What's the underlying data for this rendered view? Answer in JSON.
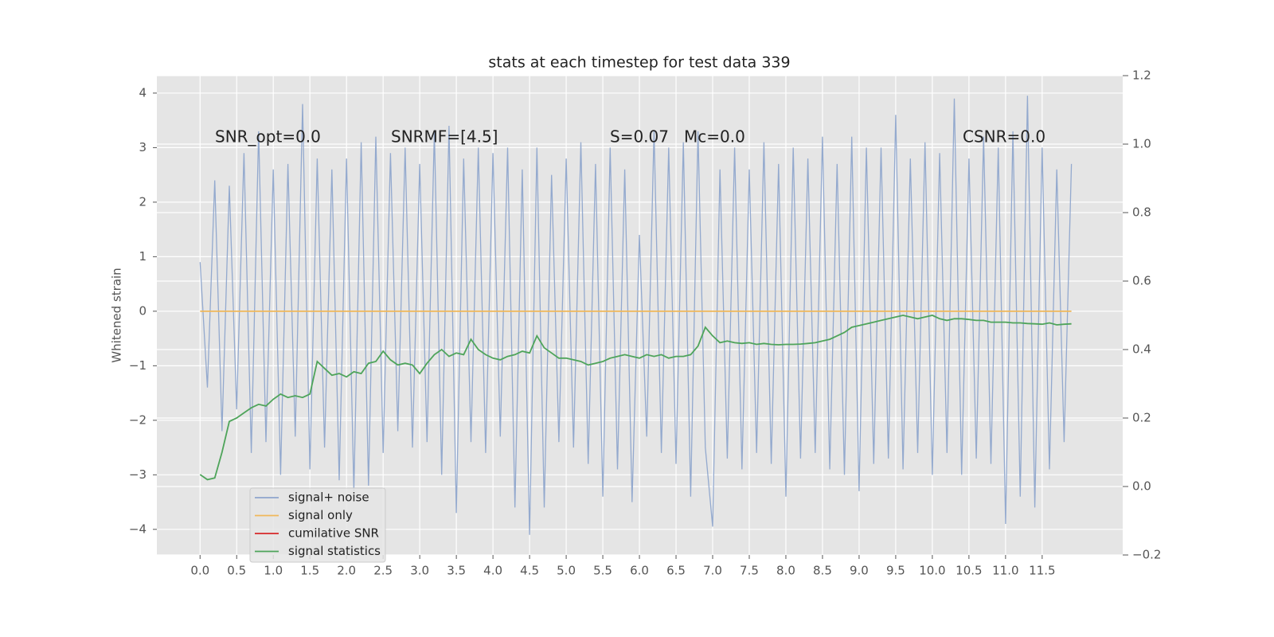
{
  "chart_data": {
    "type": "line",
    "title": "stats at each timestep for test data 339",
    "y_label": "Whitened strain",
    "annotations": [
      "SNR_opt=0.0",
      "SNRMF=[4.5]",
      "S=0.07",
      "Mc=0.0",
      "CSNR=0.0"
    ],
    "grid": true,
    "legend": "lower left",
    "xlim": [
      -0.59,
      12.6
    ],
    "ylim": [
      -4.47,
      4.32
    ],
    "y2lim": [
      -0.2,
      1.2
    ],
    "xticks": [
      {
        "value": 0,
        "label": "0.0"
      },
      0.5,
      {
        "value": 1,
        "label": "1.0"
      },
      1.5,
      {
        "value": 2,
        "label": "2.0"
      },
      2.5,
      {
        "value": 3,
        "label": "3.0"
      },
      3.5,
      {
        "value": 4,
        "label": "4.0"
      },
      4.5,
      {
        "value": 5,
        "label": "5.0"
      },
      5.5,
      {
        "value": 6,
        "label": "6.0"
      },
      6.5,
      {
        "value": 7,
        "label": "7.0"
      },
      7.5,
      {
        "value": 8,
        "label": "8.0"
      },
      8.5,
      {
        "value": 9,
        "label": "9.0"
      },
      9.5,
      {
        "value": 10,
        "label": "10.0"
      },
      10.5,
      {
        "value": 11,
        "label": "11.0"
      },
      11.5
    ],
    "yticks": [
      {
        "value": -4,
        "label": "−4"
      },
      {
        "value": -3,
        "label": "−3"
      },
      {
        "value": -2,
        "label": "−2"
      },
      {
        "value": -1,
        "label": "−1"
      },
      0,
      1,
      2,
      3,
      4
    ],
    "y2ticks": [
      {
        "value": -0.2,
        "label": "−0.2"
      },
      {
        "value": 0,
        "label": "0.0"
      },
      0.2,
      0.4,
      0.6,
      0.8,
      {
        "value": 1,
        "label": "1.0"
      },
      1.2
    ],
    "x": [
      0,
      0.1,
      0.2,
      0.3,
      0.4,
      0.5,
      0.6,
      0.7,
      0.8,
      0.9,
      1,
      1.1,
      1.2,
      1.3,
      1.4,
      1.5,
      1.6,
      1.7,
      1.8,
      1.9,
      2,
      2.1,
      2.2,
      2.3,
      2.4,
      2.5,
      2.6,
      2.7,
      2.8,
      2.9,
      3,
      3.1,
      3.2,
      3.3,
      3.4,
      3.5,
      3.6,
      3.7,
      3.8,
      3.9,
      4,
      4.1,
      4.2,
      4.3,
      4.4,
      4.5,
      4.6,
      4.7,
      4.8,
      4.9,
      5,
      5.1,
      5.2,
      5.3,
      5.4,
      5.5,
      5.6,
      5.7,
      5.8,
      5.9,
      6,
      6.1,
      6.2,
      6.3,
      6.4,
      6.5,
      6.6,
      6.7,
      6.8,
      6.9,
      7,
      7.1,
      7.2,
      7.3,
      7.4,
      7.5,
      7.6,
      7.7,
      7.8,
      7.9,
      8,
      8.1,
      8.2,
      8.3,
      8.4,
      8.5,
      8.6,
      8.7,
      8.8,
      8.9,
      9,
      9.1,
      9.2,
      9.3,
      9.4,
      9.5,
      9.6,
      9.7,
      9.8,
      9.9,
      10,
      10.1,
      10.2,
      10.3,
      10.4,
      10.5,
      10.6,
      10.7,
      10.8,
      10.9,
      11,
      11.1,
      11.2,
      11.3,
      11.4,
      11.5,
      11.6,
      11.7,
      11.8,
      11.9
    ],
    "series": [
      {
        "name": "signal+ noise",
        "color": "#8ea5cc",
        "values": [
          0.9,
          -1.4,
          2.4,
          -2.2,
          2.3,
          -1.8,
          2.9,
          -2.6,
          3.3,
          -2.4,
          2.6,
          -3.0,
          2.7,
          -2.3,
          3.8,
          -2.9,
          2.8,
          -2.5,
          2.6,
          -3.1,
          2.8,
          -3.3,
          3.1,
          -3.2,
          3.2,
          -2.6,
          2.9,
          -2.2,
          3.0,
          -2.5,
          2.7,
          -2.4,
          3.3,
          -3.0,
          3.4,
          -3.7,
          2.8,
          -2.4,
          3.0,
          -2.6,
          2.9,
          -2.3,
          3.0,
          -3.6,
          2.6,
          -4.1,
          3.0,
          -3.6,
          2.5,
          -2.4,
          2.8,
          -2.5,
          3.1,
          -2.8,
          2.7,
          -3.4,
          3.0,
          -2.9,
          2.6,
          -3.5,
          1.4,
          -2.3,
          3.3,
          -2.6,
          3.0,
          -2.8,
          3.1,
          -3.4,
          3.3,
          -2.5,
          -3.95,
          2.6,
          -2.7,
          3.0,
          -2.9,
          2.6,
          -2.6,
          3.1,
          -2.8,
          2.7,
          -3.4,
          3.0,
          -2.7,
          2.8,
          -2.6,
          3.2,
          -2.9,
          2.7,
          -3.0,
          3.2,
          -3.3,
          3.0,
          -2.8,
          3.0,
          -2.7,
          3.6,
          -2.9,
          2.8,
          -2.6,
          3.1,
          -3.0,
          2.9,
          -2.6,
          3.9,
          -3.0,
          2.8,
          -2.7,
          3.2,
          -2.8,
          3.0,
          -3.9,
          3.3,
          -3.4,
          3.95,
          -3.6,
          3.0,
          -2.9,
          2.6,
          -2.4,
          2.7
        ]
      },
      {
        "name": "signal only",
        "color": "#f0b85a",
        "values": [
          0,
          0,
          0,
          0,
          0,
          0,
          0,
          0,
          0,
          0,
          0,
          0,
          0,
          0,
          0,
          0,
          0,
          0,
          0,
          0,
          0,
          0,
          0,
          0,
          0,
          0,
          0,
          0,
          0,
          0,
          0,
          0,
          0,
          0,
          0,
          0,
          0,
          0,
          0,
          0,
          0,
          0,
          0,
          0,
          0,
          0,
          0,
          0,
          0,
          0,
          0,
          0,
          0,
          0,
          0,
          0,
          0,
          0,
          0,
          0,
          0,
          0,
          0,
          0,
          0,
          0,
          0,
          0,
          0,
          0,
          0,
          0,
          0,
          0,
          0,
          0,
          0,
          0,
          0,
          0,
          0,
          0,
          0,
          0,
          0,
          0,
          0,
          0,
          0,
          0,
          0,
          0,
          0,
          0,
          0,
          0,
          0,
          0,
          0,
          0,
          0,
          0,
          0,
          0,
          0,
          0,
          0,
          0,
          0,
          0,
          0,
          0,
          0,
          0,
          0,
          0,
          0,
          0,
          0,
          0
        ]
      },
      {
        "name": "cumilative SNR",
        "color": "#d62728",
        "axis": "y2",
        "values": [
          null,
          null,
          null,
          null,
          null,
          null,
          null,
          null,
          null,
          null,
          null,
          null,
          null,
          null,
          null,
          null,
          null,
          null,
          null,
          null,
          null,
          null,
          null,
          null,
          null,
          null,
          null,
          null,
          null,
          null,
          null,
          null,
          null,
          null,
          null,
          null,
          null,
          null,
          null,
          null,
          null,
          null,
          null,
          null,
          null,
          null,
          null,
          null,
          null,
          null,
          null,
          null,
          null,
          null,
          null,
          null,
          null,
          null,
          null,
          null,
          null,
          null,
          null,
          null,
          null,
          null,
          null,
          null,
          null,
          null,
          null,
          null,
          null,
          null,
          null,
          null,
          null,
          null,
          null,
          null,
          null,
          null,
          null,
          null,
          null,
          null,
          null,
          null,
          null,
          null,
          null,
          null,
          null,
          null,
          null,
          null,
          null,
          null,
          null,
          null,
          null,
          null,
          null,
          null,
          null,
          null,
          null,
          null,
          null,
          null,
          null,
          null,
          null,
          null,
          null,
          null,
          null,
          null,
          null,
          null
        ]
      },
      {
        "name": "signal statistics",
        "color": "#4ea45a",
        "axis": "y2",
        "values": [
          0.035,
          0.02,
          0.025,
          0.1,
          0.19,
          0.2,
          0.215,
          0.23,
          0.24,
          0.235,
          0.255,
          0.27,
          0.26,
          0.265,
          0.26,
          0.27,
          0.365,
          0.345,
          0.325,
          0.33,
          0.32,
          0.335,
          0.33,
          0.36,
          0.365,
          0.395,
          0.37,
          0.355,
          0.36,
          0.355,
          0.33,
          0.36,
          0.385,
          0.4,
          0.38,
          0.39,
          0.385,
          0.43,
          0.4,
          0.385,
          0.375,
          0.37,
          0.38,
          0.385,
          0.395,
          0.39,
          0.44,
          0.405,
          0.39,
          0.375,
          0.375,
          0.37,
          0.365,
          0.355,
          0.36,
          0.365,
          0.375,
          0.38,
          0.385,
          0.38,
          0.375,
          0.385,
          0.38,
          0.385,
          0.375,
          0.38,
          0.38,
          0.385,
          0.41,
          0.465,
          0.44,
          0.42,
          0.425,
          0.42,
          0.418,
          0.42,
          0.415,
          0.418,
          0.415,
          0.414,
          0.415,
          0.415,
          0.416,
          0.418,
          0.42,
          0.425,
          0.43,
          0.44,
          0.45,
          0.465,
          0.47,
          0.475,
          0.48,
          0.485,
          0.49,
          0.495,
          0.5,
          0.495,
          0.49,
          0.495,
          0.5,
          0.49,
          0.485,
          0.49,
          0.49,
          0.488,
          0.485,
          0.485,
          0.48,
          0.48,
          0.48,
          0.478,
          0.478,
          0.476,
          0.475,
          0.474,
          0.478,
          0.472,
          0.474,
          0.475
        ]
      }
    ]
  }
}
